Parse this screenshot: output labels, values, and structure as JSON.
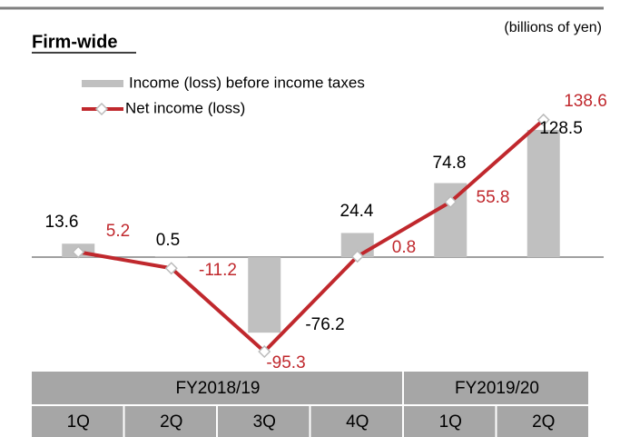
{
  "chart_data": {
    "type": "bar-line",
    "subtitle": "Firm-wide",
    "unit_note": "(billions of yen)",
    "categories": [
      "1Q",
      "2Q",
      "3Q",
      "4Q",
      "1Q",
      "2Q"
    ],
    "groups": [
      {
        "label": "FY2018/19",
        "span": 4
      },
      {
        "label": "FY2019/20",
        "span": 2
      }
    ],
    "series": [
      {
        "name": "Income (loss) before income taxes",
        "type": "bar",
        "color": "#c0c0c0",
        "values": [
          13.6,
          0.5,
          -76.2,
          24.4,
          74.8,
          128.5
        ]
      },
      {
        "name": "Net income (loss)",
        "type": "line",
        "color": "#c0282d",
        "values": [
          5.2,
          -11.2,
          -95.3,
          0.8,
          55.8,
          138.6
        ]
      }
    ],
    "ylim": [
      -110,
      150
    ]
  }
}
